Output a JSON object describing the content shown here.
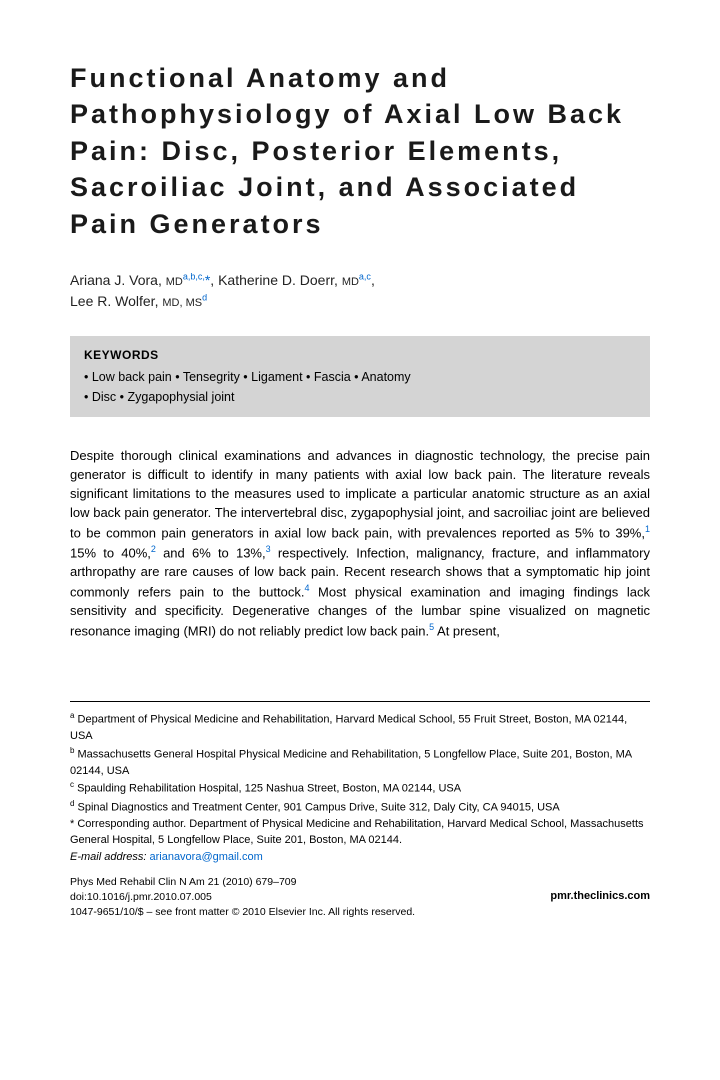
{
  "title": "Functional Anatomy and Pathophysiology of Axial Low Back Pain: Disc, Posterior Elements, Sacroiliac Joint, and Associated Pain Generators",
  "authors": {
    "a1_name": "Ariana J. Vora",
    "a1_deg": "MD",
    "a1_aff": "a,b,c,",
    "a1_corr": "*",
    "a2_name": "Katherine D. Doerr",
    "a2_deg": "MD",
    "a2_aff": "a,c",
    "a3_name": "Lee R. Wolfer",
    "a3_deg": "MD, MS",
    "a3_aff": "d"
  },
  "keywords": {
    "title": "KEYWORDS",
    "line1": "• Low back pain • Tensegrity • Ligament • Fascia • Anatomy",
    "line2": "• Disc • Zygapophysial joint"
  },
  "abstract": {
    "text1": "Despite thorough clinical examinations and advances in diagnostic technology, the precise pain generator is difficult to identify in many patients with axial low back pain. The literature reveals significant limitations to the measures used to implicate a particular anatomic structure as an axial low back pain generator. The intervertebral disc, zygapophysial joint, and sacroiliac joint are believed to be common pain generators in axial low back pain, with prevalences reported as 5% to 39%,",
    "ref1": "1",
    "text2": " 15% to 40%,",
    "ref2": "2",
    "text3": " and 6% to 13%,",
    "ref3": "3",
    "text4": " respectively. Infection, malignancy, fracture, and inflammatory arthropathy are rare causes of low back pain. Recent research shows that a symptomatic hip joint commonly refers pain to the buttock.",
    "ref4": "4",
    "text5": " Most physical examination and imaging findings lack sensitivity and specificity. Degenerative changes of the lumbar spine visualized on magnetic resonance imaging (MRI) do not reliably predict low back pain.",
    "ref5": "5",
    "text6": " At present,"
  },
  "affiliations": {
    "a": "Department of Physical Medicine and Rehabilitation, Harvard Medical School, 55 Fruit Street, Boston, MA 02144, USA",
    "b": "Massachusetts General Hospital Physical Medicine and Rehabilitation, 5 Longfellow Place, Suite 201, Boston, MA 02144, USA",
    "c": "Spaulding Rehabilitation Hospital, 125 Nashua Street, Boston, MA 02144, USA",
    "d": "Spinal Diagnostics and Treatment Center, 901 Campus Drive, Suite 312, Daly City, CA 94015, USA",
    "corr": "* Corresponding author. Department of Physical Medicine and Rehabilitation, Harvard Medical School, Massachusetts General Hospital, 5 Longfellow Place, Suite 201, Boston, MA 02144.",
    "email_label": "E-mail address:",
    "email": "arianavora@gmail.com"
  },
  "pub": {
    "journal": "Phys Med Rehabil Clin N Am 21 (2010) 679–709",
    "doi": "doi:10.1016/j.pmr.2010.07.005",
    "copyright": "1047-9651/10/$ – see front matter © 2010 Elsevier Inc. All rights reserved.",
    "url": "pmr.theclinics.com"
  },
  "colors": {
    "link": "#0066cc",
    "keywords_bg": "#d4d4d4"
  }
}
